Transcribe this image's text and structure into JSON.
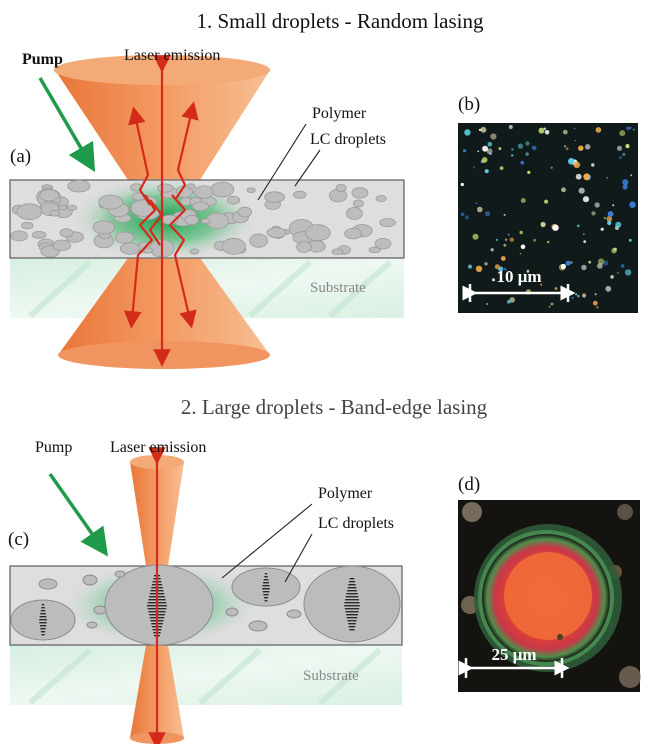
{
  "panel1": {
    "title": "1. Small droplets - Random lasing",
    "pump": "Pump",
    "laser": "Laser emission",
    "polymer": "Polymer",
    "lc": "LC droplets",
    "substrate": "Substrate",
    "label_a": "(a)",
    "label_b": "(b)",
    "scale_b": "10 μm"
  },
  "panel2": {
    "title": "2. Large droplets - Band-edge lasing",
    "pump": "Pump",
    "laser": "Laser emission",
    "polymer": "Polymer",
    "lc": "LC droplets",
    "substrate": "Substrate",
    "label_c": "(c)",
    "label_d": "(d)",
    "scale_d": "25 μm"
  },
  "colors": {
    "laser_beam": "#f0955a",
    "arrow_red": "#d42a1a",
    "pump_green": "#1e9a4a",
    "polymer_gray": "#dcdcdc",
    "droplet_gray": "#bcbcbc",
    "substrate_mint": "#e4f3ea"
  }
}
